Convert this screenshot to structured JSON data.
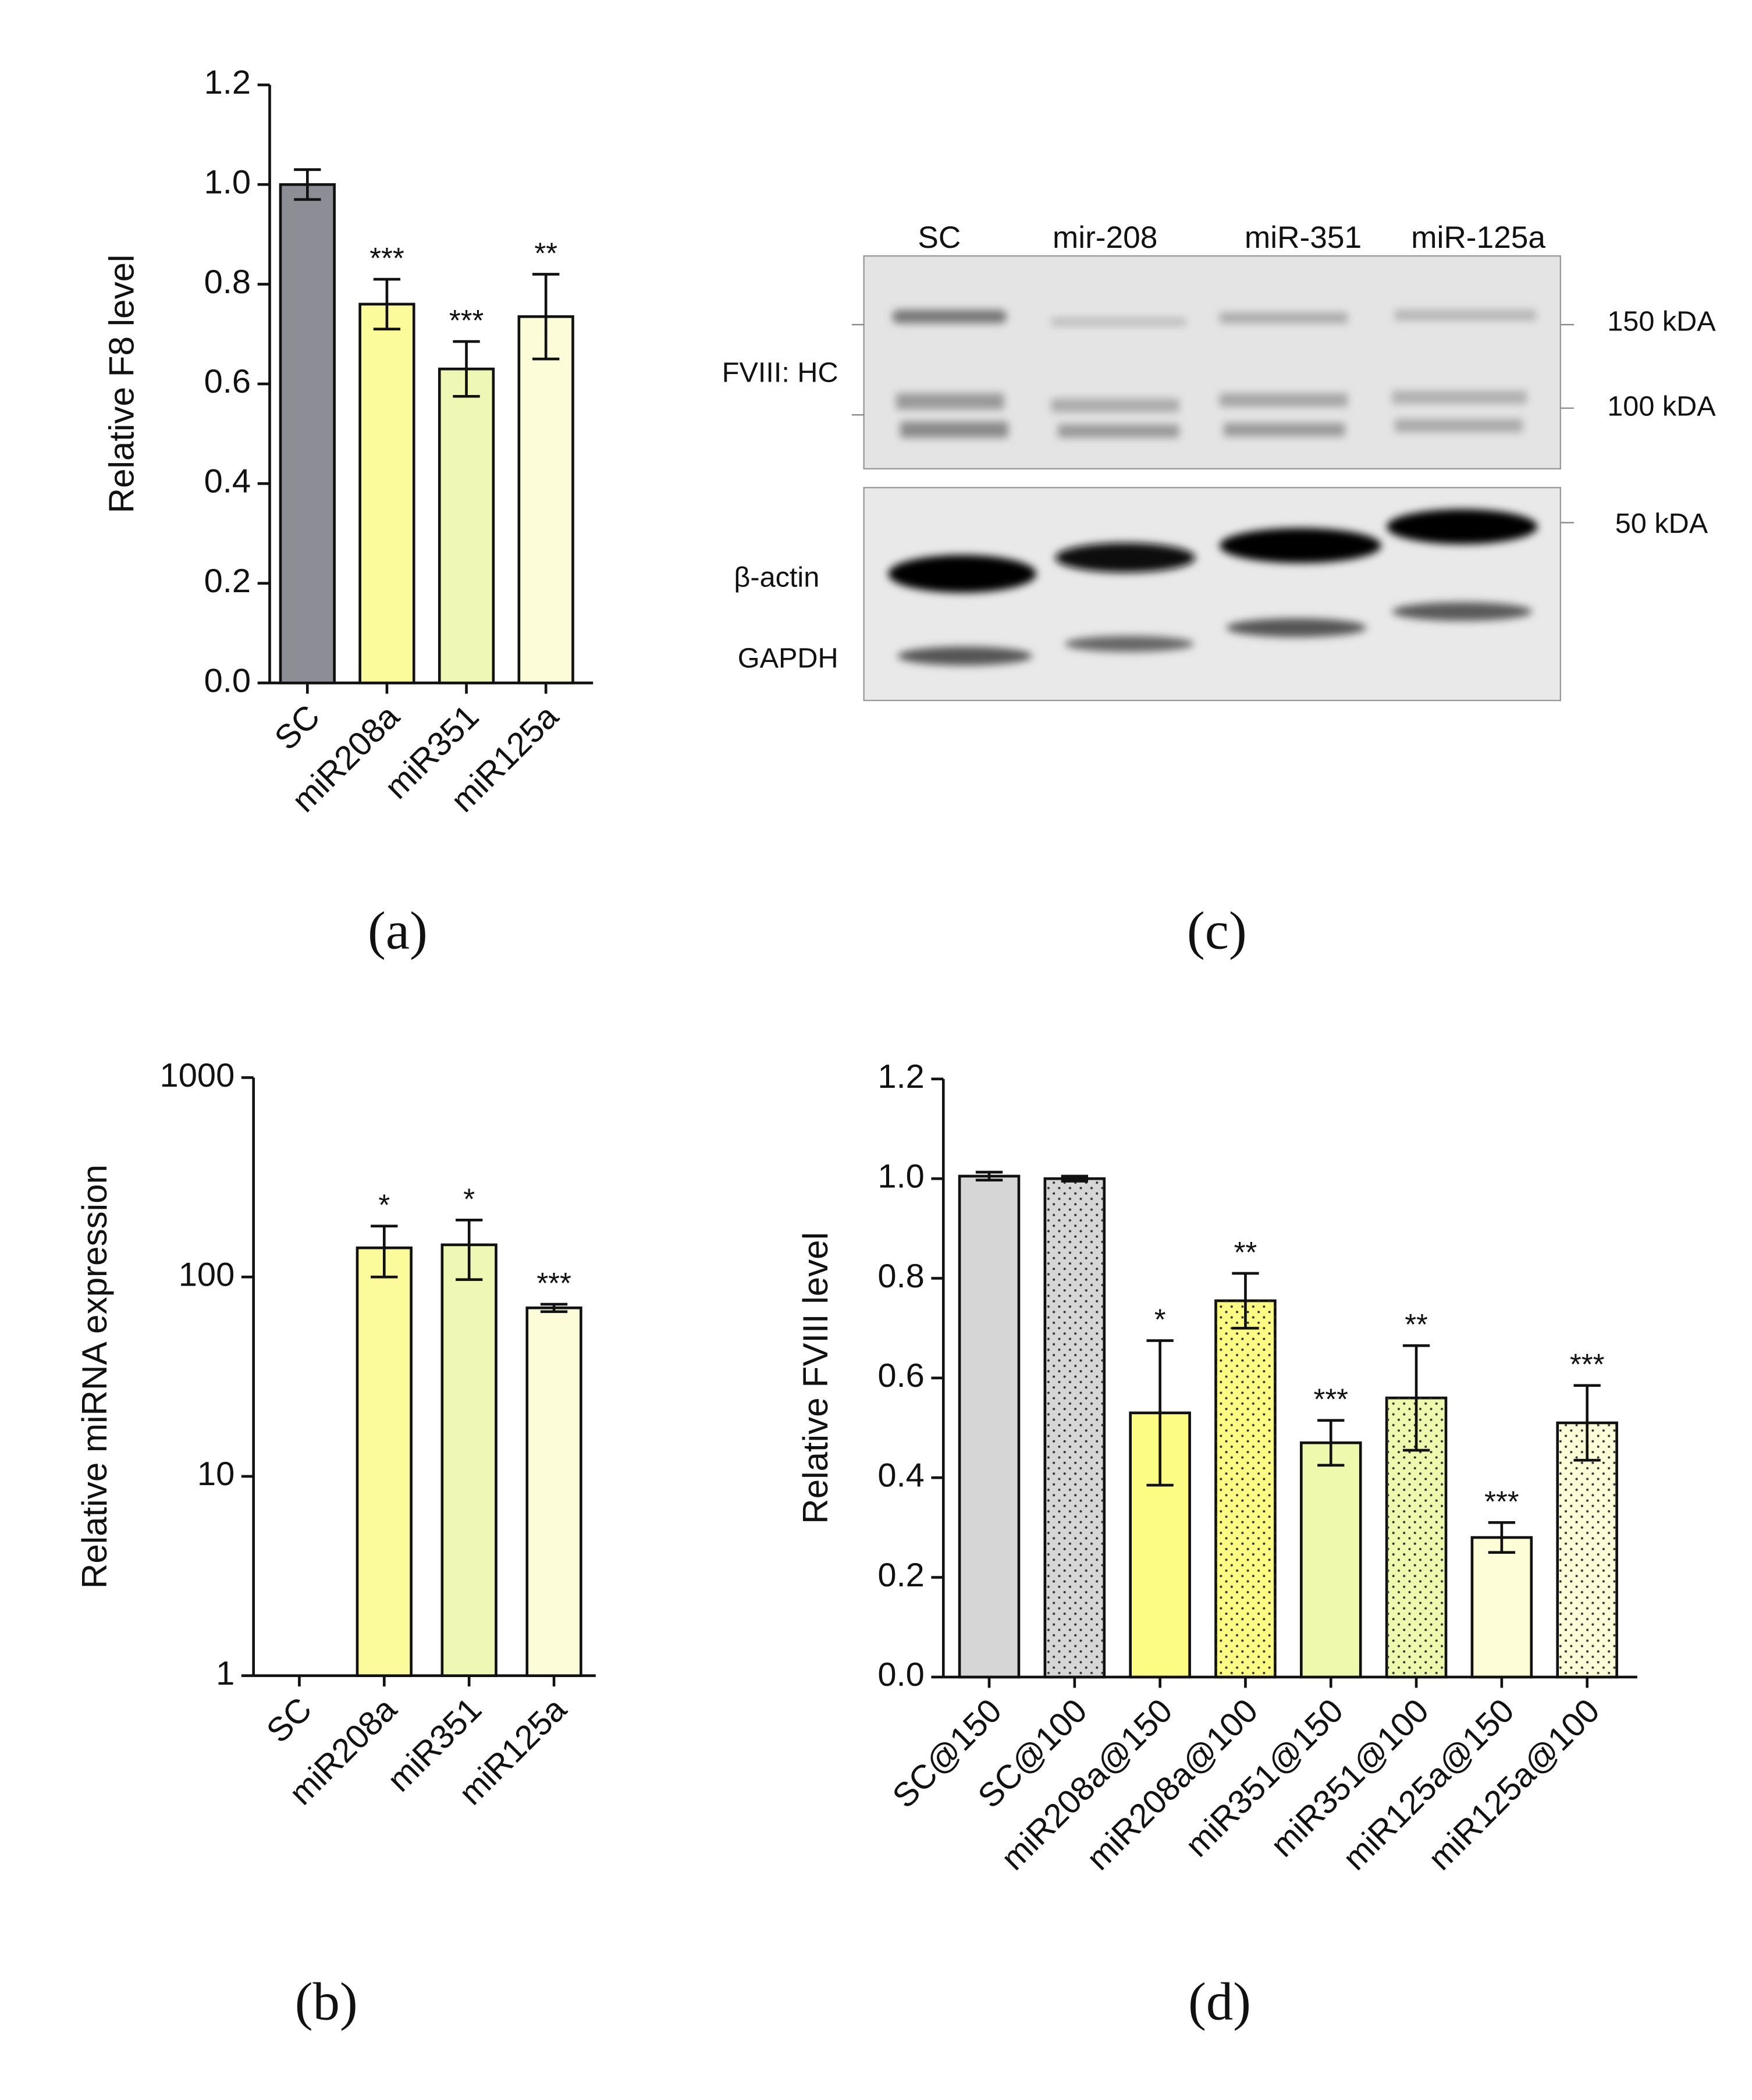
{
  "chart_data": [
    {
      "type": "bar",
      "panel_label": "(a)",
      "y_label": "Relative F8 level",
      "categories": [
        "SC",
        "miR208a",
        "miR351",
        "miR125a"
      ],
      "values": [
        1.0,
        0.76,
        0.63,
        0.735
      ],
      "errors": [
        0.03,
        0.05,
        0.055,
        0.085
      ],
      "colors": [
        "#8d8d95",
        "#fbfb9c",
        "#eef7b4",
        "#fcfcd9"
      ],
      "patterns": [
        "solid",
        "solid",
        "solid",
        "solid"
      ],
      "annotations": [
        null,
        "***",
        "***",
        "**"
      ],
      "ylim": [
        0,
        1.2
      ],
      "yticks": [
        {
          "value": 0,
          "label": "0.0"
        },
        0.2,
        0.4,
        0.6,
        0.8,
        {
          "value": 1,
          "label": "1.0"
        },
        1.2
      ],
      "log_scale": false
    },
    {
      "type": "bar",
      "panel_label": "(b)",
      "y_label": "Relative miRNA expression",
      "categories": [
        "SC",
        "miR208a",
        "miR351",
        "miR125a"
      ],
      "values": [
        1,
        140,
        145,
        70
      ],
      "errors": [
        null,
        40,
        48,
        3
      ],
      "colors": [
        "#8d8d95",
        "#fbfb9c",
        "#eef7b4",
        "#fcfcd9"
      ],
      "patterns": [
        "solid",
        "solid",
        "solid",
        "solid"
      ],
      "annotations": [
        null,
        "*",
        "*",
        "***"
      ],
      "ylim": [
        1,
        1000
      ],
      "yticks": [
        1,
        10,
        100,
        1000
      ],
      "log_scale": true
    },
    {
      "type": "bar",
      "panel_label": "(d)",
      "y_label": "Relative FVIII level",
      "categories": [
        "SC@150",
        "SC@100",
        "miR208a@150",
        "miR208a@100",
        "miR351@150",
        "miR351@100",
        "miR125a@150",
        "miR125a@100"
      ],
      "values": [
        1.005,
        1.0,
        0.53,
        0.755,
        0.47,
        0.56,
        0.28,
        0.51
      ],
      "errors": [
        0.008,
        0.005,
        0.145,
        0.055,
        0.045,
        0.105,
        0.03,
        0.075
      ],
      "colors": [
        "#d6d6d6",
        "#d6d6d6",
        "#fcfc84",
        "#fcfc84",
        "#eef9ad",
        "#eef9ad",
        "#fdfdd8",
        "#fdfdd8"
      ],
      "patterns": [
        "solid",
        "dots",
        "solid",
        "dots",
        "solid",
        "dots",
        "solid",
        "dots"
      ],
      "annotations": [
        null,
        null,
        "*",
        "**",
        "***",
        "**",
        "***",
        "***"
      ],
      "ylim": [
        0,
        1.2
      ],
      "yticks": [
        {
          "value": 0,
          "label": "0.0"
        },
        0.2,
        0.4,
        0.6,
        0.8,
        {
          "value": 1,
          "label": "1.0"
        },
        1.2
      ],
      "log_scale": false
    }
  ],
  "blot": {
    "panel_label": "(c)",
    "lanes": [
      "SC",
      "mir-208",
      "miR-351",
      "miR-125a"
    ],
    "rows": [
      "FVIII:  HC",
      "β-actin",
      "GAPDH"
    ],
    "markers": [
      "150 kDA",
      "100 kDA",
      "50 kDA"
    ]
  }
}
